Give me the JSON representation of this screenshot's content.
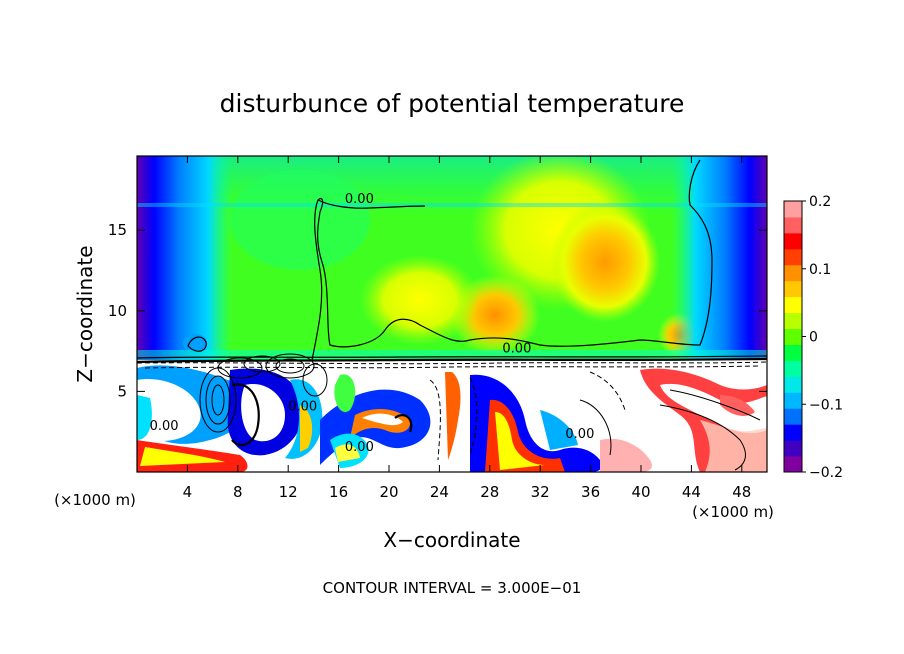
{
  "chart_data": {
    "type": "heatmap",
    "title": "disturbunce of potential temperature",
    "xlabel": "X−coordinate",
    "ylabel": "Z−coordinate",
    "x_unit_left": "(×1000 m)",
    "x_unit_right": "(×1000 m)",
    "footer": "CONTOUR INTERVAL = 3.000E−01",
    "xlim": [
      0,
      50
    ],
    "ylim": [
      0,
      19.6
    ],
    "x_ticks": [
      {
        "value": 4,
        "label": "4"
      },
      {
        "value": 8,
        "label": "8"
      },
      {
        "value": 12,
        "label": "12"
      },
      {
        "value": 16,
        "label": "16"
      },
      {
        "value": 20,
        "label": "20"
      },
      {
        "value": 24,
        "label": "24"
      },
      {
        "value": 28,
        "label": "28"
      },
      {
        "value": 32,
        "label": "32"
      },
      {
        "value": 36,
        "label": "36"
      },
      {
        "value": 40,
        "label": "40"
      },
      {
        "value": 44,
        "label": "44"
      },
      {
        "value": 48,
        "label": "48"
      }
    ],
    "y_ticks": [
      {
        "value": 5,
        "label": "5"
      },
      {
        "value": 10,
        "label": "10"
      },
      {
        "value": 15,
        "label": "15"
      }
    ],
    "colorbar": {
      "range": [
        -0.2,
        0.2
      ],
      "ticks": [
        {
          "value": 0.2,
          "label": "0.2"
        },
        {
          "value": 0.1,
          "label": "0.1"
        },
        {
          "value": 0,
          "label": "0"
        },
        {
          "value": -0.1,
          "label": "−0.1"
        },
        {
          "value": -0.2,
          "label": "−0.2"
        }
      ],
      "colors": [
        "#8000a0",
        "#4000c0",
        "#0000ff",
        "#0070ff",
        "#00b8ff",
        "#00e8e8",
        "#00ffa0",
        "#00ff40",
        "#60ff00",
        "#b8ff00",
        "#ffff00",
        "#ffc800",
        "#ff9000",
        "#ff4000",
        "#ff0000",
        "#ff6060",
        "#ffa0a0"
      ]
    },
    "contour_labels": [
      {
        "x": 16.5,
        "y": 16.7,
        "label": "0.00"
      },
      {
        "x": 29.0,
        "y": 7.4,
        "label": "0.00"
      },
      {
        "x": 1.0,
        "y": 2.6,
        "label": "0.00"
      },
      {
        "x": 12.0,
        "y": 3.8,
        "label": "0.00"
      },
      {
        "x": 16.5,
        "y": 1.3,
        "label": "0.00"
      },
      {
        "x": 34.0,
        "y": 2.1,
        "label": "0.00"
      }
    ]
  }
}
